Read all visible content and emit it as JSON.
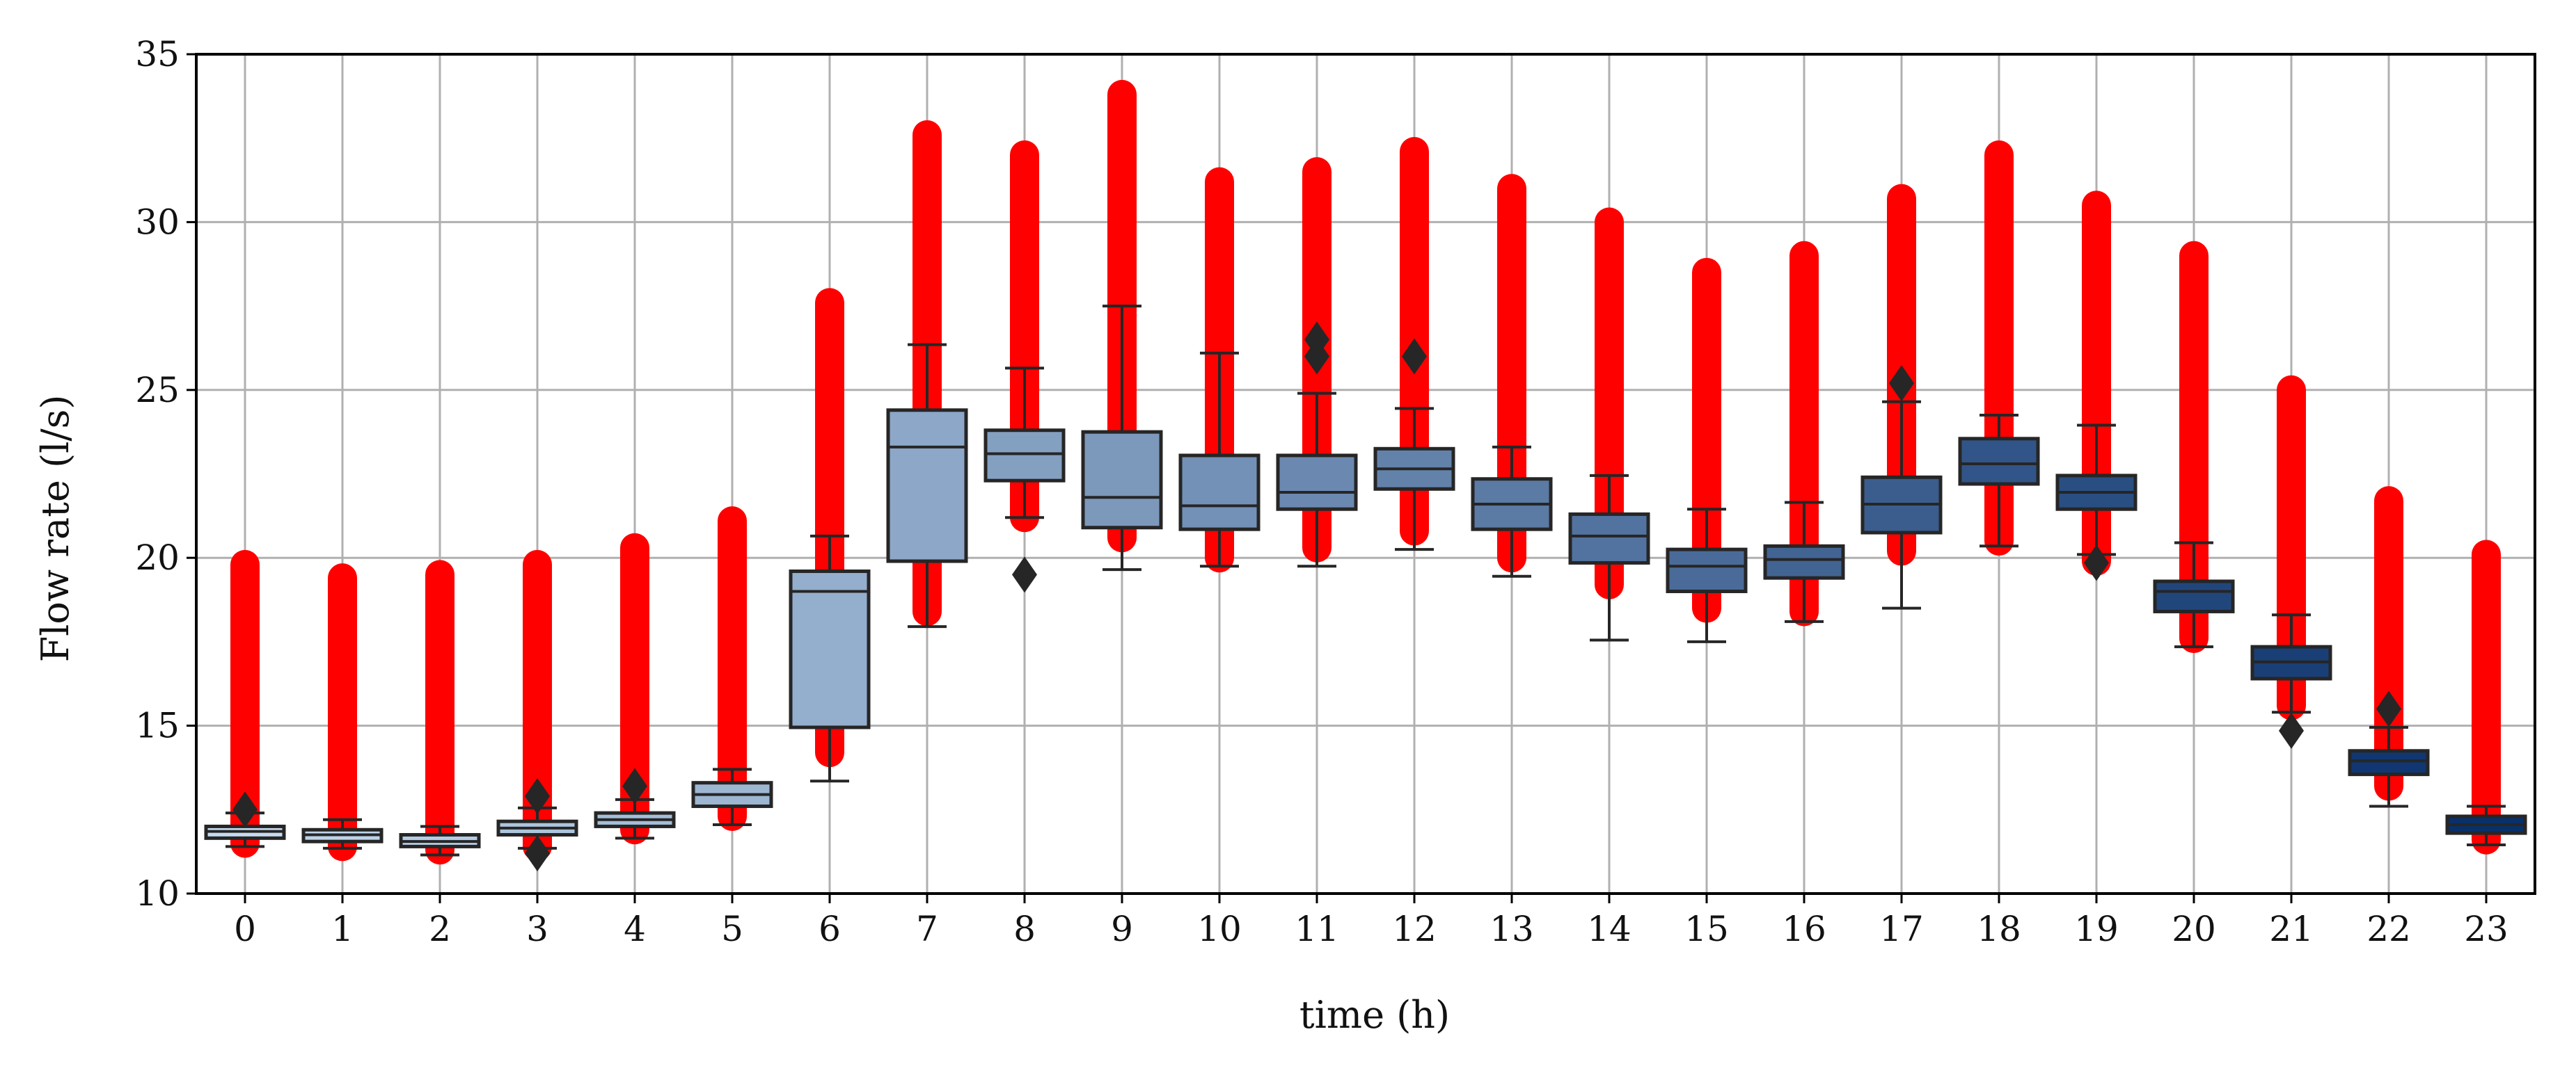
{
  "chart_data": {
    "type": "box",
    "xlabel": "time (h)",
    "ylabel": "Flow rate (l/s)",
    "ylim": [
      10,
      35
    ],
    "yticks": [
      10,
      15,
      20,
      25,
      30,
      35
    ],
    "grid": true,
    "categories": [
      "0",
      "1",
      "2",
      "3",
      "4",
      "5",
      "6",
      "7",
      "8",
      "9",
      "10",
      "11",
      "12",
      "13",
      "14",
      "15",
      "16",
      "17",
      "18",
      "19",
      "20",
      "21",
      "22",
      "23"
    ],
    "boxes": [
      {
        "x": "0",
        "whislo": 11.4,
        "q1": 11.65,
        "med": 11.85,
        "q3": 12.0,
        "whishi": 12.4,
        "fliers": [
          12.5
        ]
      },
      {
        "x": "1",
        "whislo": 11.35,
        "q1": 11.55,
        "med": 11.75,
        "q3": 11.9,
        "whishi": 12.2,
        "fliers": []
      },
      {
        "x": "2",
        "whislo": 11.15,
        "q1": 11.4,
        "med": 11.55,
        "q3": 11.75,
        "whishi": 12.0,
        "fliers": []
      },
      {
        "x": "3",
        "whislo": 11.35,
        "q1": 11.75,
        "med": 11.95,
        "q3": 12.15,
        "whishi": 12.55,
        "fliers": [
          11.2,
          12.9
        ]
      },
      {
        "x": "4",
        "whislo": 11.65,
        "q1": 12.0,
        "med": 12.2,
        "q3": 12.4,
        "whishi": 12.8,
        "fliers": [
          13.2
        ]
      },
      {
        "x": "5",
        "whislo": 12.05,
        "q1": 12.6,
        "med": 12.95,
        "q3": 13.3,
        "whishi": 13.7,
        "fliers": []
      },
      {
        "x": "6",
        "whislo": 13.35,
        "q1": 14.95,
        "med": 19.0,
        "q3": 19.6,
        "whishi": 20.65,
        "fliers": []
      },
      {
        "x": "7",
        "whislo": 17.95,
        "q1": 19.9,
        "med": 23.3,
        "q3": 24.4,
        "whishi": 26.35,
        "fliers": []
      },
      {
        "x": "8",
        "whislo": 21.2,
        "q1": 22.3,
        "med": 23.1,
        "q3": 23.8,
        "whishi": 25.65,
        "fliers": [
          19.5
        ]
      },
      {
        "x": "9",
        "whislo": 19.65,
        "q1": 20.9,
        "med": 21.8,
        "q3": 23.75,
        "whishi": 27.5,
        "fliers": []
      },
      {
        "x": "10",
        "whislo": 19.75,
        "q1": 20.85,
        "med": 21.55,
        "q3": 23.05,
        "whishi": 26.1,
        "fliers": []
      },
      {
        "x": "11",
        "whislo": 19.75,
        "q1": 21.45,
        "med": 21.95,
        "q3": 23.05,
        "whishi": 24.9,
        "fliers": [
          26.0,
          26.5
        ]
      },
      {
        "x": "12",
        "whislo": 20.25,
        "q1": 22.05,
        "med": 22.65,
        "q3": 23.25,
        "whishi": 24.45,
        "fliers": [
          26.0
        ]
      },
      {
        "x": "13",
        "whislo": 19.45,
        "q1": 20.85,
        "med": 21.6,
        "q3": 22.35,
        "whishi": 23.3,
        "fliers": []
      },
      {
        "x": "14",
        "whislo": 17.55,
        "q1": 19.85,
        "med": 20.65,
        "q3": 21.3,
        "whishi": 22.45,
        "fliers": []
      },
      {
        "x": "15",
        "whislo": 17.5,
        "q1": 19.0,
        "med": 19.75,
        "q3": 20.25,
        "whishi": 21.45,
        "fliers": []
      },
      {
        "x": "16",
        "whislo": 18.1,
        "q1": 19.4,
        "med": 19.95,
        "q3": 20.35,
        "whishi": 21.65,
        "fliers": []
      },
      {
        "x": "17",
        "whislo": 18.5,
        "q1": 20.75,
        "med": 21.6,
        "q3": 22.4,
        "whishi": 24.65,
        "fliers": [
          25.2
        ]
      },
      {
        "x": "18",
        "whislo": 20.35,
        "q1": 22.2,
        "med": 22.8,
        "q3": 23.55,
        "whishi": 24.25,
        "fliers": []
      },
      {
        "x": "19",
        "whislo": 20.1,
        "q1": 21.45,
        "med": 21.95,
        "q3": 22.45,
        "whishi": 23.95,
        "fliers": [
          19.85
        ]
      },
      {
        "x": "20",
        "whislo": 17.35,
        "q1": 18.4,
        "med": 19.0,
        "q3": 19.3,
        "whishi": 20.45,
        "fliers": []
      },
      {
        "x": "21",
        "whislo": 15.4,
        "q1": 16.4,
        "med": 16.9,
        "q3": 17.35,
        "whishi": 18.3,
        "fliers": [
          14.85
        ]
      },
      {
        "x": "22",
        "whislo": 12.6,
        "q1": 13.55,
        "med": 13.95,
        "q3": 14.25,
        "whishi": 14.95,
        "fliers": [
          15.5
        ]
      },
      {
        "x": "23",
        "whislo": 11.45,
        "q1": 11.8,
        "med": 12.05,
        "q3": 12.3,
        "whishi": 12.6,
        "fliers": []
      }
    ],
    "scatter_ranges": [
      {
        "x": "0",
        "min": 11.5,
        "max": 19.8
      },
      {
        "x": "1",
        "min": 11.4,
        "max": 19.4
      },
      {
        "x": "2",
        "min": 11.3,
        "max": 19.5
      },
      {
        "x": "3",
        "min": 11.4,
        "max": 19.8
      },
      {
        "x": "4",
        "min": 11.9,
        "max": 20.3
      },
      {
        "x": "5",
        "min": 12.3,
        "max": 21.1
      },
      {
        "x": "6",
        "min": 14.2,
        "max": 27.6
      },
      {
        "x": "7",
        "min": 18.4,
        "max": 32.6
      },
      {
        "x": "8",
        "min": 21.2,
        "max": 32.0
      },
      {
        "x": "9",
        "min": 20.6,
        "max": 33.8
      },
      {
        "x": "10",
        "min": 20.0,
        "max": 31.2
      },
      {
        "x": "11",
        "min": 20.3,
        "max": 31.5
      },
      {
        "x": "12",
        "min": 20.8,
        "max": 32.1
      },
      {
        "x": "13",
        "min": 20.0,
        "max": 31.0
      },
      {
        "x": "14",
        "min": 19.2,
        "max": 30.0
      },
      {
        "x": "15",
        "min": 18.5,
        "max": 28.5
      },
      {
        "x": "16",
        "min": 18.4,
        "max": 29.0
      },
      {
        "x": "17",
        "min": 20.2,
        "max": 30.7
      },
      {
        "x": "18",
        "min": 20.5,
        "max": 32.0
      },
      {
        "x": "19",
        "min": 19.9,
        "max": 30.5
      },
      {
        "x": "20",
        "min": 17.6,
        "max": 29.0
      },
      {
        "x": "21",
        "min": 15.6,
        "max": 25.0
      },
      {
        "x": "22",
        "min": 13.2,
        "max": 21.7
      },
      {
        "x": "23",
        "min": 11.6,
        "max": 20.1
      }
    ],
    "colors": {
      "scatter": "#ff0000",
      "box_edge": "#262626",
      "grid": "#b0b0b0",
      "flier": "#262626",
      "palette_light": "#c6dbef",
      "palette_dark": "#08306b"
    }
  }
}
